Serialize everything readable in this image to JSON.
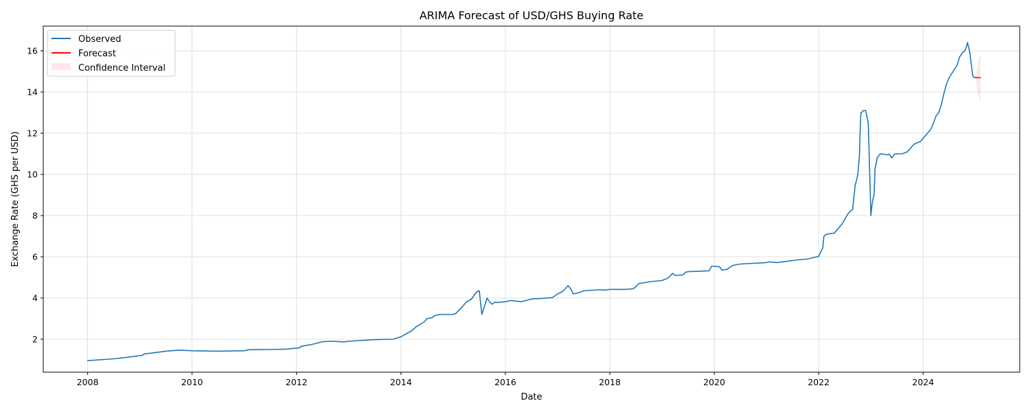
{
  "chart_data": {
    "type": "line",
    "title": "ARIMA Forecast of USD/GHS Buying Rate",
    "xlabel": "Date",
    "ylabel": "Exchange Rate (GHS per USD)",
    "xlim": [
      2007.15,
      2025.85
    ],
    "ylim": [
      0.4,
      17.2
    ],
    "x_ticks": [
      2008,
      2010,
      2012,
      2014,
      2016,
      2018,
      2020,
      2022,
      2024
    ],
    "x_tick_labels": [
      "2008",
      "2010",
      "2012",
      "2014",
      "2016",
      "2018",
      "2020",
      "2022",
      "2024"
    ],
    "y_ticks": [
      2,
      4,
      6,
      8,
      10,
      12,
      14,
      16
    ],
    "y_tick_labels": [
      "2",
      "4",
      "6",
      "8",
      "10",
      "12",
      "14",
      "16"
    ],
    "grid": true,
    "legend_position": "top-left",
    "legend": [
      "Observed",
      "Forecast",
      "Confidence Interval"
    ],
    "colors": {
      "observed": "#1f77b4",
      "forecast": "#ff0000",
      "confidence": "#ffc0cb"
    },
    "series": [
      {
        "name": "Observed",
        "x": [
          2008.0,
          2008.5,
          2008.75,
          2009.05,
          2009.08,
          2009.5,
          2009.75,
          2010.0,
          2010.5,
          2011.0,
          2011.08,
          2011.5,
          2011.8,
          2012.05,
          2012.1,
          2012.3,
          2012.5,
          2012.7,
          2012.9,
          2013.0,
          2013.5,
          2013.85,
          2014.0,
          2014.2,
          2014.3,
          2014.45,
          2014.5,
          2014.6,
          2014.65,
          2014.75,
          2015.0,
          2015.05,
          2015.15,
          2015.25,
          2015.35,
          2015.45,
          2015.5,
          2015.55,
          2015.6,
          2015.65,
          2015.7,
          2015.75,
          2015.8,
          2015.85,
          2016.0,
          2016.1,
          2016.3,
          2016.5,
          2016.7,
          2016.9,
          2017.0,
          2017.1,
          2017.2,
          2017.25,
          2017.3,
          2017.4,
          2017.5,
          2017.8,
          2017.9,
          2018.0,
          2018.3,
          2018.45,
          2018.5,
          2018.55,
          2018.8,
          2019.0,
          2019.1,
          2019.15,
          2019.2,
          2019.25,
          2019.4,
          2019.45,
          2019.5,
          2019.9,
          2019.95,
          2020.1,
          2020.15,
          2020.25,
          2020.35,
          2020.5,
          2021.0,
          2021.05,
          2021.2,
          2021.6,
          2021.8,
          2022.0,
          2022.08,
          2022.1,
          2022.15,
          2022.18,
          2022.2,
          2022.3,
          2022.45,
          2022.55,
          2022.6,
          2022.65,
          2022.7,
          2022.72,
          2022.75,
          2022.78,
          2022.8,
          2022.81,
          2022.82,
          2022.84,
          2022.85,
          2022.9,
          2022.95,
          2023.0,
          2023.02,
          2023.04,
          2023.06,
          2023.08,
          2023.1,
          2023.12,
          2023.18,
          2023.2,
          2023.3,
          2023.35,
          2023.4,
          2023.45,
          2023.5,
          2023.6,
          2023.7,
          2023.8,
          2023.85,
          2023.9,
          2023.95,
          2024.0,
          2024.05,
          2024.1,
          2024.15,
          2024.2,
          2024.25,
          2024.3,
          2024.35,
          2024.4,
          2024.45,
          2024.5,
          2024.55,
          2024.6,
          2024.65,
          2024.7,
          2024.75,
          2024.8,
          2024.83,
          2024.85,
          2024.88,
          2024.9,
          2024.95,
          2024.98,
          2025.0
        ],
        "values": [
          0.96,
          1.05,
          1.12,
          1.22,
          1.28,
          1.42,
          1.47,
          1.44,
          1.42,
          1.44,
          1.49,
          1.5,
          1.52,
          1.58,
          1.66,
          1.75,
          1.88,
          1.9,
          1.87,
          1.9,
          1.98,
          2.0,
          2.12,
          2.4,
          2.62,
          2.85,
          3.0,
          3.05,
          3.15,
          3.2,
          3.2,
          3.25,
          3.5,
          3.8,
          3.95,
          4.3,
          4.35,
          3.2,
          3.6,
          4.0,
          3.8,
          3.7,
          3.8,
          3.78,
          3.82,
          3.88,
          3.82,
          3.95,
          3.98,
          4.02,
          4.2,
          4.32,
          4.6,
          4.45,
          4.2,
          4.25,
          4.35,
          4.4,
          4.38,
          4.42,
          4.42,
          4.45,
          4.55,
          4.7,
          4.8,
          4.85,
          4.95,
          5.05,
          5.2,
          5.1,
          5.12,
          5.25,
          5.28,
          5.32,
          5.55,
          5.52,
          5.35,
          5.4,
          5.58,
          5.65,
          5.72,
          5.75,
          5.72,
          5.85,
          5.9,
          6.02,
          6.45,
          7.0,
          7.1,
          7.1,
          7.12,
          7.15,
          7.6,
          8.05,
          8.2,
          8.3,
          9.5,
          9.65,
          10.0,
          10.9,
          12.5,
          13.0,
          13.0,
          13.05,
          13.1,
          13.1,
          12.5,
          8.0,
          8.5,
          8.8,
          9.0,
          10.3,
          10.5,
          10.8,
          11.0,
          11.0,
          10.95,
          10.98,
          10.8,
          10.98,
          11.0,
          11.0,
          11.1,
          11.4,
          11.5,
          11.55,
          11.6,
          11.75,
          11.9,
          12.05,
          12.2,
          12.5,
          12.85,
          13.0,
          13.4,
          13.95,
          14.4,
          14.7,
          14.9,
          15.1,
          15.3,
          15.7,
          15.9,
          16.0,
          16.2,
          16.4,
          16.1,
          15.8,
          14.8,
          14.7,
          14.7
        ]
      },
      {
        "name": "Forecast",
        "x": [
          2025.0,
          2025.1
        ],
        "values": [
          14.7,
          14.7
        ]
      }
    ],
    "confidence_interval": {
      "x": [
        2025.0,
        2025.05,
        2025.1
      ],
      "lower": [
        14.7,
        13.95,
        13.5
      ],
      "upper": [
        14.7,
        15.45,
        15.9
      ]
    }
  }
}
